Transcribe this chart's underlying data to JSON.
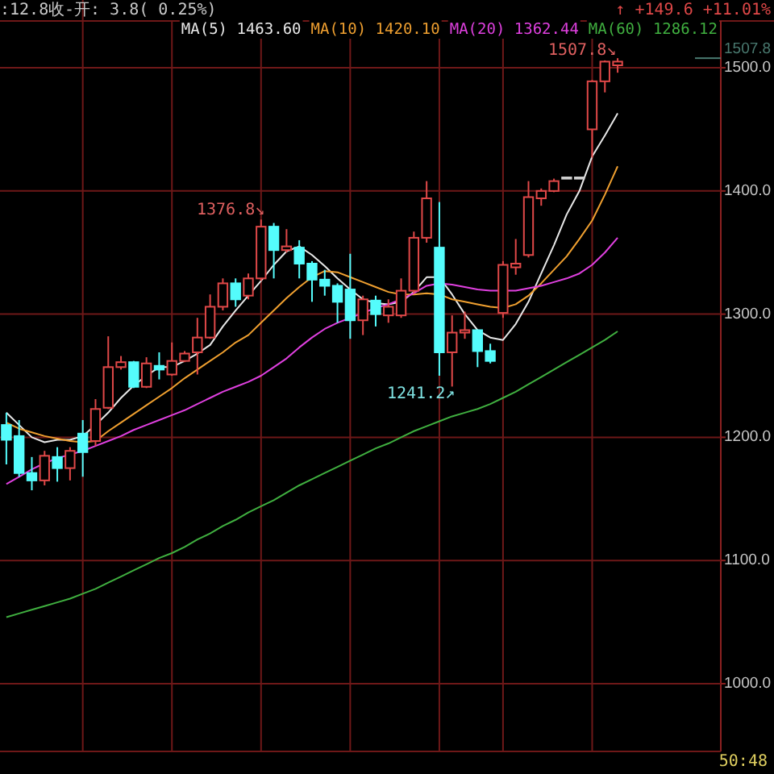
{
  "chart_data": {
    "type": "candlestick",
    "categories": [
      null,
      null,
      null,
      null,
      null,
      null,
      null,
      null,
      null,
      null,
      null,
      null,
      null,
      null,
      null,
      null,
      null,
      null,
      null,
      null,
      null,
      null,
      null,
      null,
      null,
      null,
      null,
      null,
      null,
      null,
      null,
      null,
      null,
      null,
      null,
      null,
      null,
      null,
      null,
      null,
      null,
      null,
      null,
      null,
      null,
      null,
      null,
      null,
      null
    ],
    "ohlc": [
      [
        1210,
        1220,
        1178,
        1198
      ],
      [
        1201,
        1214,
        1168,
        1171
      ],
      [
        1171,
        1184,
        1157,
        1165
      ],
      [
        1165,
        1189,
        1161,
        1185
      ],
      [
        1184,
        1192,
        1164,
        1175
      ],
      [
        1175,
        1192,
        1165,
        1189
      ],
      [
        1203,
        1214,
        1168,
        1188
      ],
      [
        1197,
        1231,
        1193,
        1223
      ],
      [
        1224,
        1282,
        1223,
        1257
      ],
      [
        1257,
        1266,
        1255,
        1261
      ],
      [
        1261,
        1262,
        1240,
        1241
      ],
      [
        1241,
        1265,
        1240,
        1260
      ],
      [
        1258,
        1269,
        1247,
        1255
      ],
      [
        1251,
        1277,
        1250,
        1262
      ],
      [
        1262,
        1270,
        1261,
        1268
      ],
      [
        1269,
        1297,
        1251,
        1281
      ],
      [
        1281,
        1316,
        1280,
        1306
      ],
      [
        1306,
        1329,
        1303,
        1325
      ],
      [
        1325,
        1329,
        1306,
        1312
      ],
      [
        1315,
        1333,
        1312,
        1329
      ],
      [
        1329,
        1376.8,
        1327,
        1371
      ],
      [
        1371,
        1374,
        1329,
        1352
      ],
      [
        1352,
        1369,
        1350,
        1355
      ],
      [
        1354,
        1360,
        1329,
        1341
      ],
      [
        1341,
        1343,
        1310,
        1328
      ],
      [
        1328,
        1336,
        1315,
        1323
      ],
      [
        1323,
        1325,
        1293,
        1310
      ],
      [
        1320,
        1349,
        1280,
        1295
      ],
      [
        1295,
        1315,
        1283,
        1312
      ],
      [
        1311,
        1315,
        1290,
        1300
      ],
      [
        1299,
        1312,
        1293,
        1306
      ],
      [
        1299,
        1329,
        1297,
        1319
      ],
      [
        1319,
        1367,
        1317,
        1362
      ],
      [
        1362,
        1408,
        1358,
        1394
      ],
      [
        1354,
        1391,
        1250,
        1269
      ],
      [
        1269,
        1299,
        1241.2,
        1285
      ],
      [
        1285,
        1302,
        1280,
        1287
      ],
      [
        1287,
        1287,
        1257,
        1270
      ],
      [
        1270,
        1276,
        1260,
        1262
      ],
      [
        1301,
        1343,
        1297,
        1340
      ],
      [
        1338,
        1361,
        1332,
        1341
      ],
      [
        1348,
        1408,
        1346,
        1395
      ],
      [
        1394,
        1402,
        1388,
        1400
      ],
      [
        1400,
        1410,
        1399,
        1408
      ],
      [
        1411,
        1411,
        1411,
        1411
      ],
      [
        1411,
        1411,
        1411,
        1411
      ],
      [
        1450,
        1490,
        1427,
        1489
      ],
      [
        1489,
        1506,
        1480,
        1505
      ],
      [
        1502,
        1507.8,
        1496,
        1505
      ]
    ],
    "colors": [
      "#54fcfc",
      "#54fcfc",
      "#54fcfc",
      "#e04848",
      "#54fcfc",
      "#e04848",
      "#54fcfc",
      "#e04848",
      "#e04848",
      "#e04848",
      "#54fcfc",
      "#e04848",
      "#54fcfc",
      "#e04848",
      "#e04848",
      "#e04848",
      "#e04848",
      "#e04848",
      "#54fcfc",
      "#e04848",
      "#e04848",
      "#54fcfc",
      "#e04848",
      "#54fcfc",
      "#54fcfc",
      "#54fcfc",
      "#54fcfc",
      "#54fcfc",
      "#e04848",
      "#54fcfc",
      "#e04848",
      "#e04848",
      "#e04848",
      "#e04848",
      "#54fcfc",
      "#e04848",
      "#e04848",
      "#54fcfc",
      "#54fcfc",
      "#e04848",
      "#e04848",
      "#e04848",
      "#e04848",
      "#e04848",
      "#d0d0d0",
      "#d0d0d0",
      "#e04848",
      "#e04848",
      "#e04848"
    ],
    "series": [
      {
        "type": "line",
        "name": "MA(5) 1463.60",
        "color": "#e8e8e8",
        "values": [
          1220,
          1210,
          1200,
          1196,
          1198,
          1198,
          1201,
          1210,
          1220,
          1232,
          1242,
          1250,
          1257,
          1257,
          1262,
          1268,
          1275,
          1290,
          1303,
          1315,
          1327,
          1340,
          1351,
          1355,
          1348,
          1339,
          1329,
          1320,
          1312,
          1309,
          1308,
          1310,
          1318,
          1330,
          1330,
          1316,
          1300,
          1287,
          1281,
          1279,
          1292,
          1310,
          1333,
          1356,
          1381,
          1400,
          1428,
          1445,
          1463
        ]
      },
      {
        "type": "line",
        "name": "MA(10) 1420.10",
        "color": "#f0a030",
        "values": [
          1212,
          1207,
          1204,
          1201,
          1199,
          1197,
          1196,
          1197,
          1205,
          1212,
          1219,
          1226,
          1233,
          1240,
          1248,
          1255,
          1262,
          1269,
          1277,
          1283,
          1293,
          1303,
          1313,
          1322,
          1330,
          1335,
          1334,
          1330,
          1326,
          1322,
          1318,
          1316,
          1316,
          1317,
          1316,
          1312,
          1310,
          1308,
          1306,
          1305,
          1308,
          1315,
          1325,
          1336,
          1347,
          1361,
          1376,
          1397,
          1420
        ]
      },
      {
        "type": "line",
        "name": "MA(20) 1362.44",
        "color": "#e040e0",
        "values": [
          1162,
          1168,
          1174,
          1179,
          1183,
          1186,
          1189,
          1193,
          1197,
          1201,
          1206,
          1210,
          1214,
          1218,
          1222,
          1227,
          1232,
          1237,
          1241,
          1245,
          1250,
          1257,
          1264,
          1273,
          1281,
          1288,
          1293,
          1297,
          1301,
          1305,
          1308,
          1312,
          1317,
          1323,
          1325,
          1324,
          1322,
          1320,
          1319,
          1319,
          1319,
          1321,
          1323,
          1326,
          1329,
          1333,
          1340,
          1350,
          1362
        ]
      },
      {
        "type": "line",
        "name": "MA(60) 1286.12",
        "color": "#40b040",
        "values": [
          1054,
          1057,
          1060,
          1063,
          1066,
          1069,
          1073,
          1077,
          1082,
          1087,
          1092,
          1097,
          1102,
          1106,
          1111,
          1117,
          1122,
          1128,
          1133,
          1139,
          1144,
          1149,
          1155,
          1161,
          1166,
          1171,
          1176,
          1181,
          1186,
          1191,
          1195,
          1200,
          1205,
          1209,
          1213,
          1217,
          1220,
          1223,
          1227,
          1232,
          1237,
          1243,
          1249,
          1255,
          1261,
          1267,
          1273,
          1279,
          1286
        ]
      }
    ],
    "ylim": [
      945,
      1538
    ],
    "yticks": [
      {
        "value": 1000,
        "label": "1000.0"
      },
      {
        "value": 1100,
        "label": "1100.0"
      },
      {
        "value": 1200,
        "label": "1200.0"
      },
      {
        "value": 1300,
        "label": "1300.0"
      },
      {
        "value": 1400,
        "label": "1400.0"
      },
      {
        "value": 1500,
        "label": "1500.0"
      }
    ],
    "tick_labels": "y",
    "grid": true,
    "legend": "top right",
    "ref_lines": [
      {
        "axis": "y",
        "value": 1507.8,
        "label": "1507.8",
        "color": "#4a7a70"
      }
    ],
    "annotations": [
      ":12.8",
      "收-开: 3.8( 0.25%)",
      "↑ +149.6  +11.01%",
      "50:48",
      "1376.8↘",
      "1507.8↘",
      "1241.2↗"
    ]
  }
}
